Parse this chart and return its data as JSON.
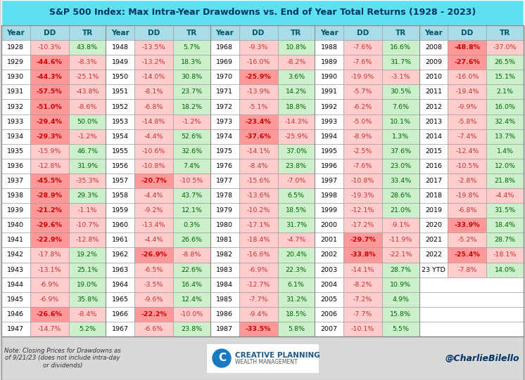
{
  "title": "S&P 500 Index: Max Intra-Year Drawdowns vs. End of Year Total Returns (1928 - 2023)",
  "note": "Note: Closing Prices for Drawdowns as\nof 9/21/23 (does not include intra-day\nor dividends)",
  "twitter": "@CharlieBilello",
  "title_bg": "#5de0f0",
  "title_color": "#003366",
  "header_bg": "#a8dce8",
  "header_text_color": "#005566",
  "year_bg": "#ffffff",
  "year_text_color": "#000000",
  "dd_light_bg": "#ffcccc",
  "dd_dark_bg": "#ff9999",
  "dd_light_text": "#cc3333",
  "dd_dark_text": "#cc0000",
  "tr_pos_bg": "#ccf0cc",
  "tr_neg_bg": "#ffcccc",
  "tr_pos_text": "#006600",
  "tr_neg_text": "#cc3333",
  "dd_dark_threshold": -20.0,
  "bottom_bg": "#d8d8d8",
  "table_border": "#888888",
  "table_data": [
    {
      "year": 1928,
      "dd": -10.3,
      "tr": 43.8
    },
    {
      "year": 1929,
      "dd": -44.6,
      "tr": -8.3
    },
    {
      "year": 1930,
      "dd": -44.3,
      "tr": -25.1
    },
    {
      "year": 1931,
      "dd": -57.5,
      "tr": -43.8
    },
    {
      "year": 1932,
      "dd": -51.0,
      "tr": -8.6
    },
    {
      "year": 1933,
      "dd": -29.4,
      "tr": 50.0
    },
    {
      "year": 1934,
      "dd": -29.3,
      "tr": -1.2
    },
    {
      "year": 1935,
      "dd": -15.9,
      "tr": 46.7
    },
    {
      "year": 1936,
      "dd": -12.8,
      "tr": 31.9
    },
    {
      "year": 1937,
      "dd": -45.5,
      "tr": -35.3
    },
    {
      "year": 1938,
      "dd": -28.9,
      "tr": 29.3
    },
    {
      "year": 1939,
      "dd": -21.2,
      "tr": -1.1
    },
    {
      "year": 1940,
      "dd": -29.6,
      "tr": -10.7
    },
    {
      "year": 1941,
      "dd": -22.9,
      "tr": -12.8
    },
    {
      "year": 1942,
      "dd": -17.8,
      "tr": 19.2
    },
    {
      "year": 1943,
      "dd": -13.1,
      "tr": 25.1
    },
    {
      "year": 1944,
      "dd": -6.9,
      "tr": 19.0
    },
    {
      "year": 1945,
      "dd": -6.9,
      "tr": 35.8
    },
    {
      "year": 1946,
      "dd": -26.6,
      "tr": -8.4
    },
    {
      "year": 1947,
      "dd": -14.7,
      "tr": 5.2
    },
    {
      "year": 1948,
      "dd": -13.5,
      "tr": 5.7
    },
    {
      "year": 1949,
      "dd": -13.2,
      "tr": 18.3
    },
    {
      "year": 1950,
      "dd": -14.0,
      "tr": 30.8
    },
    {
      "year": 1951,
      "dd": -8.1,
      "tr": 23.7
    },
    {
      "year": 1952,
      "dd": -6.8,
      "tr": 18.2
    },
    {
      "year": 1953,
      "dd": -14.8,
      "tr": -1.2
    },
    {
      "year": 1954,
      "dd": -4.4,
      "tr": 52.6
    },
    {
      "year": 1955,
      "dd": -10.6,
      "tr": 32.6
    },
    {
      "year": 1956,
      "dd": -10.8,
      "tr": 7.4
    },
    {
      "year": 1957,
      "dd": -20.7,
      "tr": -10.5
    },
    {
      "year": 1958,
      "dd": -4.4,
      "tr": 43.7
    },
    {
      "year": 1959,
      "dd": -9.2,
      "tr": 12.1
    },
    {
      "year": 1960,
      "dd": -13.4,
      "tr": 0.3
    },
    {
      "year": 1961,
      "dd": -4.4,
      "tr": 26.6
    },
    {
      "year": 1962,
      "dd": -26.9,
      "tr": -8.8
    },
    {
      "year": 1963,
      "dd": -6.5,
      "tr": 22.6
    },
    {
      "year": 1964,
      "dd": -3.5,
      "tr": 16.4
    },
    {
      "year": 1965,
      "dd": -9.6,
      "tr": 12.4
    },
    {
      "year": 1966,
      "dd": -22.2,
      "tr": -10.0
    },
    {
      "year": 1967,
      "dd": -6.6,
      "tr": 23.8
    },
    {
      "year": 1968,
      "dd": -9.3,
      "tr": 10.8
    },
    {
      "year": 1969,
      "dd": -16.0,
      "tr": -8.2
    },
    {
      "year": 1970,
      "dd": -25.9,
      "tr": 3.6
    },
    {
      "year": 1971,
      "dd": -13.9,
      "tr": 14.2
    },
    {
      "year": 1972,
      "dd": -5.1,
      "tr": 18.8
    },
    {
      "year": 1973,
      "dd": -23.4,
      "tr": -14.3
    },
    {
      "year": 1974,
      "dd": -37.6,
      "tr": -25.9
    },
    {
      "year": 1975,
      "dd": -14.1,
      "tr": 37.0
    },
    {
      "year": 1976,
      "dd": -8.4,
      "tr": 23.8
    },
    {
      "year": 1977,
      "dd": -15.6,
      "tr": -7.0
    },
    {
      "year": 1978,
      "dd": -13.6,
      "tr": 6.5
    },
    {
      "year": 1979,
      "dd": -10.2,
      "tr": 18.5
    },
    {
      "year": 1980,
      "dd": -17.1,
      "tr": 31.7
    },
    {
      "year": 1981,
      "dd": -18.4,
      "tr": -4.7
    },
    {
      "year": 1982,
      "dd": -16.6,
      "tr": 20.4
    },
    {
      "year": 1983,
      "dd": -6.9,
      "tr": 22.3
    },
    {
      "year": 1984,
      "dd": -12.7,
      "tr": 6.1
    },
    {
      "year": 1985,
      "dd": -7.7,
      "tr": 31.2
    },
    {
      "year": 1986,
      "dd": -9.4,
      "tr": 18.5
    },
    {
      "year": 1987,
      "dd": -33.5,
      "tr": 5.8
    },
    {
      "year": 1988,
      "dd": -7.6,
      "tr": 16.6
    },
    {
      "year": 1989,
      "dd": -7.6,
      "tr": 31.7
    },
    {
      "year": 1990,
      "dd": -19.9,
      "tr": -3.1
    },
    {
      "year": 1991,
      "dd": -5.7,
      "tr": 30.5
    },
    {
      "year": 1992,
      "dd": -6.2,
      "tr": 7.6
    },
    {
      "year": 1993,
      "dd": -5.0,
      "tr": 10.1
    },
    {
      "year": 1994,
      "dd": -8.9,
      "tr": 1.3
    },
    {
      "year": 1995,
      "dd": -2.5,
      "tr": 37.6
    },
    {
      "year": 1996,
      "dd": -7.6,
      "tr": 23.0
    },
    {
      "year": 1997,
      "dd": -10.8,
      "tr": 33.4
    },
    {
      "year": 1998,
      "dd": -19.3,
      "tr": 28.6
    },
    {
      "year": 1999,
      "dd": -12.1,
      "tr": 21.0
    },
    {
      "year": 2000,
      "dd": -17.2,
      "tr": -9.1
    },
    {
      "year": 2001,
      "dd": -29.7,
      "tr": -11.9
    },
    {
      "year": 2002,
      "dd": -33.8,
      "tr": -22.1
    },
    {
      "year": 2003,
      "dd": -14.1,
      "tr": 28.7
    },
    {
      "year": 2004,
      "dd": -8.2,
      "tr": 10.9
    },
    {
      "year": 2005,
      "dd": -7.2,
      "tr": 4.9
    },
    {
      "year": 2006,
      "dd": -7.7,
      "tr": 15.8
    },
    {
      "year": 2007,
      "dd": -10.1,
      "tr": 5.5
    },
    {
      "year": 2008,
      "dd": -48.8,
      "tr": -37.0
    },
    {
      "year": 2009,
      "dd": -27.6,
      "tr": 26.5
    },
    {
      "year": 2010,
      "dd": -16.0,
      "tr": 15.1
    },
    {
      "year": 2011,
      "dd": -19.4,
      "tr": 2.1
    },
    {
      "year": 2012,
      "dd": -9.9,
      "tr": 16.0
    },
    {
      "year": 2013,
      "dd": -5.8,
      "tr": 32.4
    },
    {
      "year": 2014,
      "dd": -7.4,
      "tr": 13.7
    },
    {
      "year": 2015,
      "dd": -12.4,
      "tr": 1.4
    },
    {
      "year": 2016,
      "dd": -10.5,
      "tr": 12.0
    },
    {
      "year": 2017,
      "dd": -2.8,
      "tr": 21.8
    },
    {
      "year": 2018,
      "dd": -19.8,
      "tr": -4.4
    },
    {
      "year": 2019,
      "dd": -6.8,
      "tr": 31.5
    },
    {
      "year": 2020,
      "dd": -33.9,
      "tr": 18.4
    },
    {
      "year": 2021,
      "dd": -5.2,
      "tr": 28.7
    },
    {
      "year": 2022,
      "dd": -25.4,
      "tr": -18.1
    },
    {
      "year": 2023,
      "dd": -7.8,
      "tr": 14.0,
      "label": "23 YTD"
    }
  ]
}
